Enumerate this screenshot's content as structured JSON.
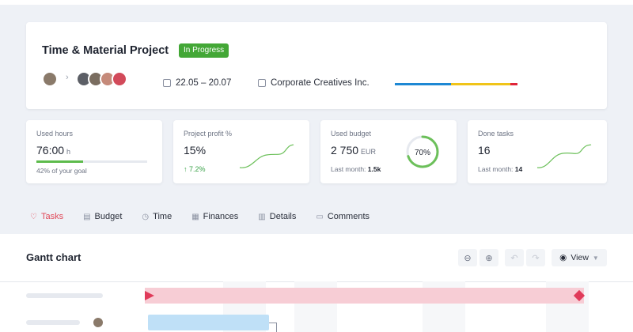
{
  "project": {
    "title": "Time & Material Project",
    "status": "In Progress",
    "dates": "22.05 – 20.07",
    "client": "Corporate Creatives Inc.",
    "colors": {
      "status": "#43a736",
      "progress": [
        "#1e88d4",
        "#f0c419",
        "#e0243a"
      ]
    }
  },
  "stats": {
    "hours": {
      "label": "Used hours",
      "value": "76:00",
      "unit": "h",
      "goal_text": "42% of your goal",
      "goal_fraction": 0.42
    },
    "profit": {
      "label": "Project profit %",
      "value": "15%",
      "growth": "7.2%"
    },
    "budget": {
      "label": "Used budget",
      "value": "2 750",
      "unit": "EUR",
      "last_month_label": "Last month:",
      "last_month_value": "1.5k",
      "percent": "70%",
      "fraction": 0.7
    },
    "tasks": {
      "label": "Done tasks",
      "value": "16",
      "last_month_label": "Last month:",
      "last_month_value": "14"
    }
  },
  "tabs": [
    {
      "label": "Tasks",
      "icon": "check-heart-icon",
      "active": true
    },
    {
      "label": "Budget",
      "icon": "budget-icon",
      "active": false
    },
    {
      "label": "Time",
      "icon": "clock-icon",
      "active": false
    },
    {
      "label": "Finances",
      "icon": "finances-icon",
      "active": false
    },
    {
      "label": "Details",
      "icon": "details-icon",
      "active": false
    },
    {
      "label": "Comments",
      "icon": "comment-icon",
      "active": false
    }
  ],
  "gantt": {
    "title": "Gantt chart",
    "view_label": "View"
  }
}
